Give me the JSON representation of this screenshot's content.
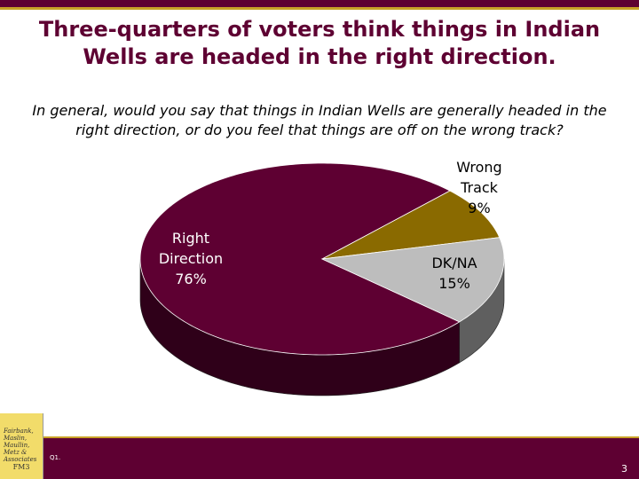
{
  "chart_data": {
    "type": "pie3d",
    "title": "Three-quarters of voters think things in Indian Wells are headed in the right direction.",
    "subtitle": "In general, would you say that things in Indian Wells are generally headed in the right direction, or do you feel that things are off on the wrong track?",
    "categories": [
      "Right Direction",
      "Wrong Track",
      "DK/NA"
    ],
    "values": [
      76,
      9,
      15
    ],
    "value_labels": [
      "76%",
      "9%",
      "15%"
    ],
    "colors": [
      "#5e0032",
      "#8a6a00",
      "#bdbdbd"
    ],
    "label_colors": [
      "#ffffff",
      "#000000",
      "#000000"
    ]
  },
  "footer": {
    "question": "Q1.",
    "page": "3",
    "logo": "Fairbank, Maslin, Maullin, Metz & Associates",
    "logo_mark": "FM3"
  }
}
